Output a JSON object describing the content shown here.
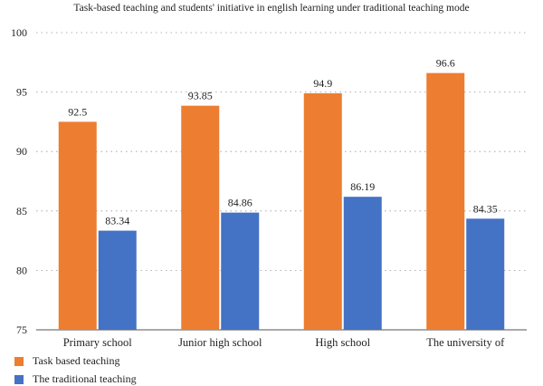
{
  "chart_data": {
    "type": "bar",
    "title": "Task-based teaching and students' initiative in english learning under traditional teaching mode",
    "categories": [
      "Primary school",
      "Junior high school",
      "High school",
      "The university of"
    ],
    "series": [
      {
        "name": "Task based teaching",
        "color": "#ED7D31",
        "values": [
          92.5,
          93.85,
          94.9,
          96.6
        ],
        "labels": [
          "92.5",
          "93.85",
          "94.9",
          "96.6"
        ]
      },
      {
        "name": "The traditional teaching",
        "color": "#4472C4",
        "values": [
          83.34,
          84.86,
          86.19,
          84.35
        ],
        "labels": [
          "83.34",
          "84.86",
          "86.19",
          "84.35"
        ]
      }
    ],
    "ylim": [
      75,
      100
    ],
    "yticks": [
      75,
      80,
      85,
      90,
      95,
      100
    ],
    "grid": true,
    "legend": "bottom-left"
  }
}
